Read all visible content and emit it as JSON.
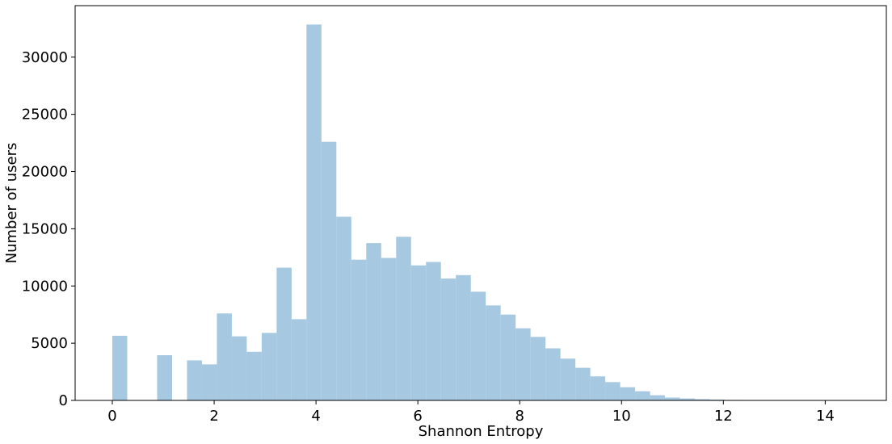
{
  "chart_data": {
    "type": "bar",
    "title": "",
    "xlabel": "Shannon Entropy",
    "ylabel": "Number of users",
    "xlim": [
      -0.73,
      15.2
    ],
    "ylim": [
      0,
      34500
    ],
    "xticks": [
      0,
      2,
      4,
      6,
      8,
      10,
      12,
      14
    ],
    "yticks": [
      0,
      5000,
      10000,
      15000,
      20000,
      25000,
      30000
    ],
    "grid": false,
    "bar_color": "#a6c8e0",
    "bin_width": 0.2933,
    "bins": [
      {
        "x0": 0.0,
        "value": 5650
      },
      {
        "x0": 0.2933,
        "value": 0
      },
      {
        "x0": 0.5867,
        "value": 0
      },
      {
        "x0": 0.88,
        "value": 3950
      },
      {
        "x0": 1.1733,
        "value": 0
      },
      {
        "x0": 1.4667,
        "value": 3500
      },
      {
        "x0": 1.76,
        "value": 3150
      },
      {
        "x0": 2.0533,
        "value": 7600
      },
      {
        "x0": 2.3467,
        "value": 5600
      },
      {
        "x0": 2.64,
        "value": 4250
      },
      {
        "x0": 2.9333,
        "value": 5900
      },
      {
        "x0": 3.2267,
        "value": 11600
      },
      {
        "x0": 3.52,
        "value": 7100
      },
      {
        "x0": 3.8133,
        "value": 32850
      },
      {
        "x0": 4.1067,
        "value": 22600
      },
      {
        "x0": 4.4,
        "value": 16050
      },
      {
        "x0": 4.6933,
        "value": 12300
      },
      {
        "x0": 4.9867,
        "value": 13750
      },
      {
        "x0": 5.28,
        "value": 12450
      },
      {
        "x0": 5.5733,
        "value": 14300
      },
      {
        "x0": 5.8667,
        "value": 11800
      },
      {
        "x0": 6.16,
        "value": 12100
      },
      {
        "x0": 6.4533,
        "value": 10650
      },
      {
        "x0": 6.7467,
        "value": 10950
      },
      {
        "x0": 7.04,
        "value": 9500
      },
      {
        "x0": 7.3333,
        "value": 8300
      },
      {
        "x0": 7.6267,
        "value": 7500
      },
      {
        "x0": 7.92,
        "value": 6300
      },
      {
        "x0": 8.2133,
        "value": 5550
      },
      {
        "x0": 8.5067,
        "value": 4550
      },
      {
        "x0": 8.8,
        "value": 3650
      },
      {
        "x0": 9.0933,
        "value": 2850
      },
      {
        "x0": 9.3867,
        "value": 2100
      },
      {
        "x0": 9.68,
        "value": 1600
      },
      {
        "x0": 9.9733,
        "value": 1150
      },
      {
        "x0": 10.2667,
        "value": 800
      },
      {
        "x0": 10.56,
        "value": 450
      },
      {
        "x0": 10.8533,
        "value": 250
      },
      {
        "x0": 11.1467,
        "value": 170
      },
      {
        "x0": 11.44,
        "value": 110
      },
      {
        "x0": 11.7333,
        "value": 70
      },
      {
        "x0": 12.0267,
        "value": 40
      },
      {
        "x0": 12.32,
        "value": 15
      },
      {
        "x0": 12.6133,
        "value": 8
      },
      {
        "x0": 12.9067,
        "value": 5
      },
      {
        "x0": 13.2,
        "value": 3
      },
      {
        "x0": 13.4933,
        "value": 2
      },
      {
        "x0": 13.7867,
        "value": 1
      },
      {
        "x0": 14.08,
        "value": 1
      },
      {
        "x0": 14.3733,
        "value": 1
      }
    ]
  }
}
